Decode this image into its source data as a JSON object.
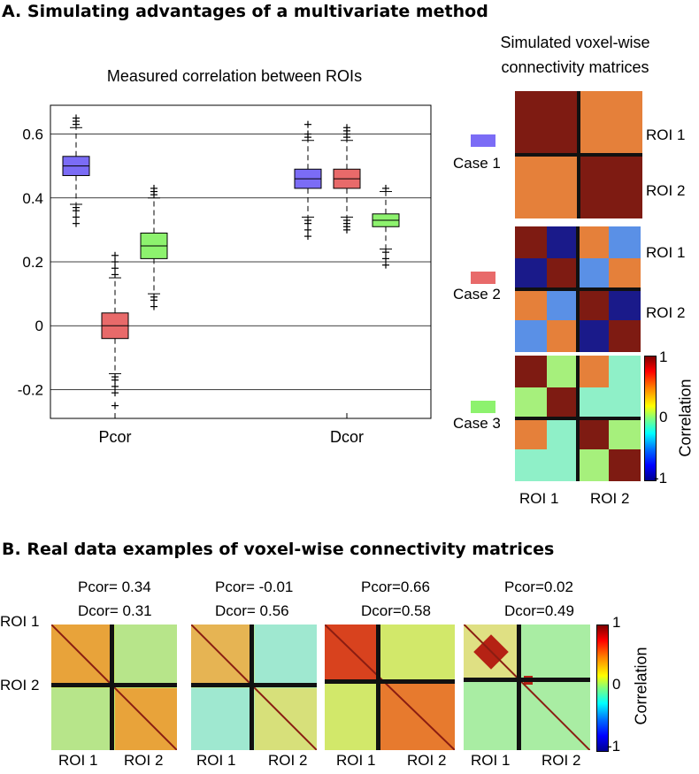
{
  "section_a": {
    "title": "A. Simulating advantages of a multivariate method",
    "right_title_line1": "Simulated voxel-wise",
    "right_title_line2": "connectivity matrices",
    "roi1": "ROI 1",
    "roi2": "ROI 2",
    "cases": [
      {
        "label": "Case 1",
        "color": "#7b6cf6"
      },
      {
        "label": "Case 2",
        "color": "#e86a6a"
      },
      {
        "label": "Case 3",
        "color": "#8df26e"
      }
    ],
    "colorbar": {
      "label": "Correlation",
      "ticks": [
        "1",
        "0",
        "-1"
      ]
    }
  },
  "section_b": {
    "title": "B. Real data examples of voxel-wise connectivity matrices",
    "roi1": "ROI 1",
    "roi2": "ROI 2",
    "examples": [
      {
        "pcor": "Pcor= 0.34",
        "dcor": "Dcor= 0.31"
      },
      {
        "pcor": "Pcor= -0.01",
        "dcor": "Dcor= 0.56"
      },
      {
        "pcor": "Pcor=0.66",
        "dcor": "Dcor=0.58"
      },
      {
        "pcor": "Pcor=0.02",
        "dcor": "Dcor=0.49"
      }
    ],
    "colorbar": {
      "label": "Correlation",
      "ticks": [
        "1",
        "0",
        "-1"
      ]
    }
  },
  "chart_data": {
    "type": "boxplot",
    "title": "Measured correlation between ROIs",
    "categories": [
      "Pcor",
      "Dcor"
    ],
    "ylim": [
      -0.29,
      0.69
    ],
    "yticks": [
      -0.2,
      0,
      0.2,
      0.4,
      0.6
    ],
    "ytick_labels": [
      "-0.2",
      "0",
      "0.2",
      "0.4",
      "0.6"
    ],
    "grid": true,
    "series": [
      {
        "name": "Case 1",
        "color": "#7b6cf6",
        "boxes": [
          {
            "category": "Pcor",
            "q1": 0.47,
            "median": 0.5,
            "q3": 0.53,
            "whisker_low": 0.38,
            "whisker_high": 0.62,
            "outliers": [
              0.32,
              0.34,
              0.36,
              0.37,
              0.63,
              0.64,
              0.65
            ]
          },
          {
            "category": "Dcor",
            "q1": 0.43,
            "median": 0.46,
            "q3": 0.49,
            "whisker_low": 0.34,
            "whisker_high": 0.58,
            "outliers": [
              0.28,
              0.3,
              0.32,
              0.33,
              0.59,
              0.6,
              0.63
            ]
          }
        ]
      },
      {
        "name": "Case 2",
        "color": "#e86a6a",
        "boxes": [
          {
            "category": "Pcor",
            "q1": -0.04,
            "median": 0.0,
            "q3": 0.04,
            "whisker_low": -0.15,
            "whisker_high": 0.15,
            "outliers": [
              -0.16,
              -0.17,
              -0.19,
              -0.21,
              -0.25,
              0.16,
              0.18,
              0.2,
              0.22
            ]
          },
          {
            "category": "Dcor",
            "q1": 0.43,
            "median": 0.46,
            "q3": 0.49,
            "whisker_low": 0.34,
            "whisker_high": 0.58,
            "outliers": [
              0.3,
              0.31,
              0.32,
              0.33,
              0.59,
              0.6,
              0.61,
              0.62
            ]
          }
        ]
      },
      {
        "name": "Case 3",
        "color": "#8df26e",
        "boxes": [
          {
            "category": "Pcor",
            "q1": 0.21,
            "median": 0.25,
            "q3": 0.29,
            "whisker_low": 0.1,
            "whisker_high": 0.4,
            "outliers": [
              0.06,
              0.08,
              0.09,
              0.41,
              0.42,
              0.43
            ]
          },
          {
            "category": "Dcor",
            "q1": 0.31,
            "median": 0.33,
            "q3": 0.35,
            "whisker_low": 0.24,
            "whisker_high": 0.42,
            "outliers": [
              0.19,
              0.21,
              0.23,
              0.43
            ]
          }
        ]
      }
    ]
  }
}
